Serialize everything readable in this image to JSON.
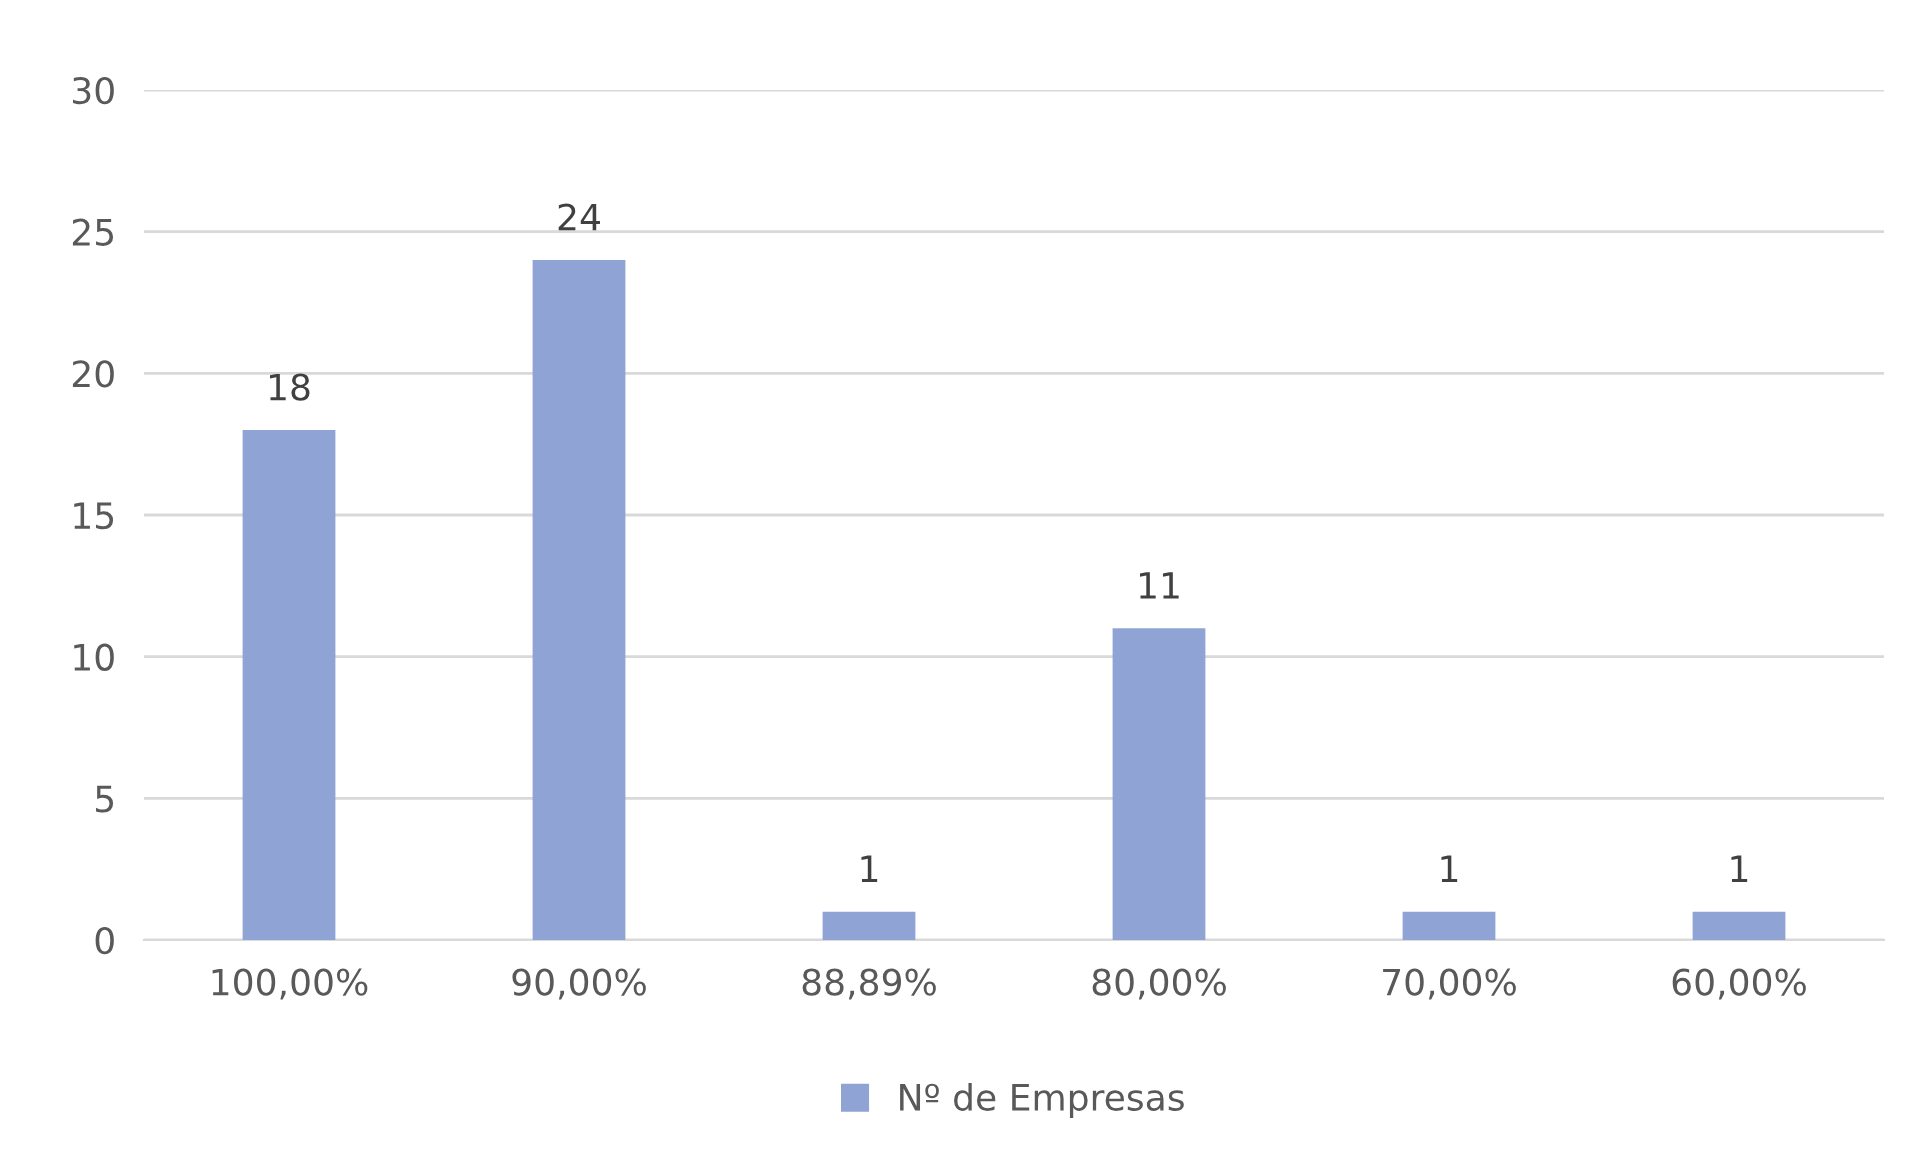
{
  "chart_data": {
    "type": "bar",
    "categories": [
      "100,00%",
      "90,00%",
      "88,89%",
      "80,00%",
      "70,00%",
      "60,00%"
    ],
    "series": [
      {
        "name": "Nº de Empresas",
        "color": "#8fa4d4",
        "values": [
          18,
          24,
          1,
          11,
          1,
          1
        ]
      }
    ],
    "ylim": [
      0,
      30
    ],
    "yticks": [
      0,
      5,
      10,
      15,
      20,
      25,
      30
    ],
    "grid": "y",
    "legend": "bottom",
    "data_labels": true
  }
}
